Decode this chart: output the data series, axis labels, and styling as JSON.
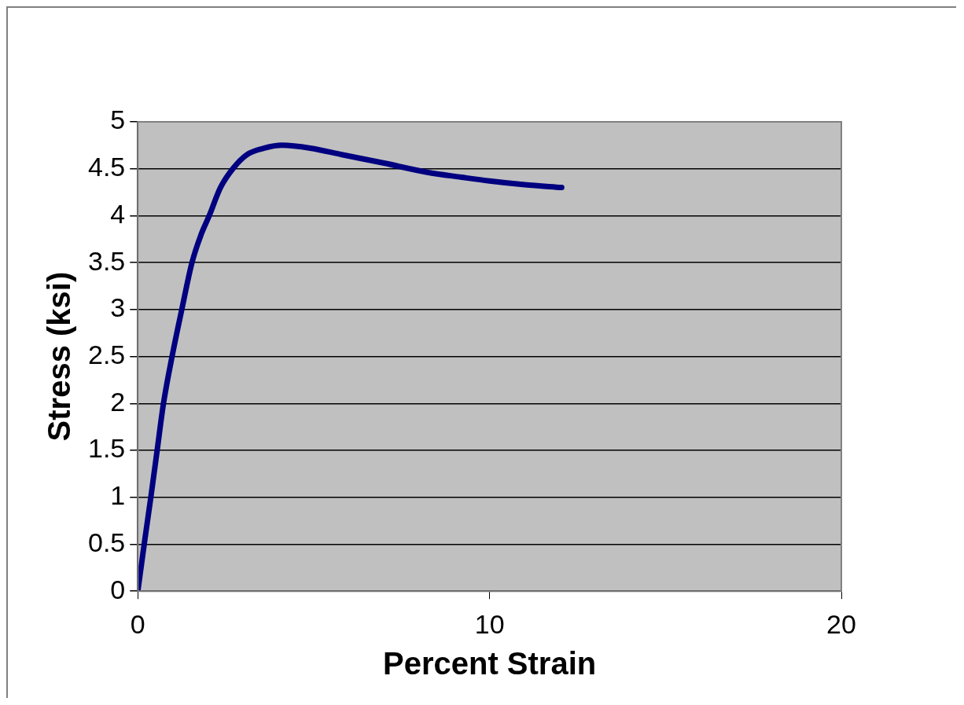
{
  "chart_data": {
    "type": "line",
    "xlabel": "Percent Strain",
    "ylabel": "Stress (ksi)",
    "xlim": [
      0,
      20
    ],
    "xticks": [
      0,
      10,
      20
    ],
    "ylim": [
      0,
      5
    ],
    "yticks": [
      0,
      0.5,
      1,
      1.5,
      2,
      2.5,
      3,
      3.5,
      4,
      4.5,
      5
    ],
    "series": [
      {
        "color": "#000080",
        "x": [
          0,
          0.2,
          0.37,
          0.55,
          0.73,
          1.0,
          1.25,
          1.54,
          1.8,
          2.03,
          2.35,
          2.7,
          3.1,
          3.6,
          4.1,
          4.9,
          5.8,
          7.0,
          8.26,
          9.2,
          10,
          11,
          12.05
        ],
        "values": [
          0,
          0.55,
          1,
          1.5,
          2,
          2.55,
          3,
          3.5,
          3.8,
          4,
          4.3,
          4.5,
          4.65,
          4.72,
          4.75,
          4.72,
          4.65,
          4.56,
          4.46,
          4.41,
          4.37,
          4.33,
          4.3
        ]
      }
    ],
    "grid": "y",
    "legend": false,
    "marker": "none",
    "line_style": "solid"
  }
}
